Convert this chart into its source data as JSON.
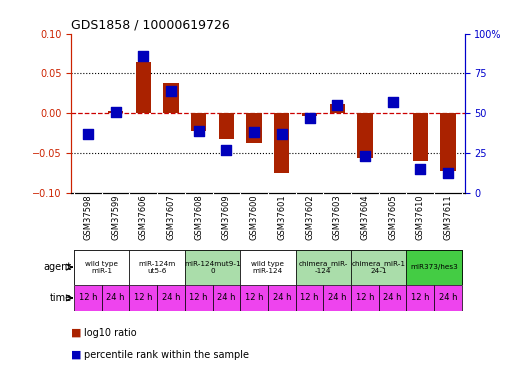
{
  "title": "GDS1858 / 10000619726",
  "samples": [
    "GSM37598",
    "GSM37599",
    "GSM37606",
    "GSM37607",
    "GSM37608",
    "GSM37609",
    "GSM37600",
    "GSM37601",
    "GSM37602",
    "GSM37603",
    "GSM37604",
    "GSM37605",
    "GSM37610",
    "GSM37611"
  ],
  "log10_ratio": [
    0.0,
    0.003,
    0.065,
    0.038,
    -0.022,
    -0.032,
    -0.038,
    -0.075,
    -0.004,
    0.012,
    -0.057,
    0.0,
    -0.06,
    -0.073
  ],
  "percentile_rank": [
    37,
    51,
    86,
    64,
    39,
    27,
    38,
    37,
    47,
    55,
    23,
    57,
    15,
    12
  ],
  "ylim": [
    -0.1,
    0.1
  ],
  "y2lim": [
    0,
    100
  ],
  "yticks": [
    -0.1,
    -0.05,
    0.0,
    0.05,
    0.1
  ],
  "y2ticks": [
    0,
    25,
    50,
    75,
    100
  ],
  "bar_color": "#aa2200",
  "dot_color": "#0000bb",
  "agent_groups": [
    {
      "label": "wild type\nmiR-1",
      "cols": [
        0,
        1
      ],
      "color": "#ffffff"
    },
    {
      "label": "miR-124m\nut5-6",
      "cols": [
        2,
        3
      ],
      "color": "#ffffff"
    },
    {
      "label": "miR-124mut9-1\n0",
      "cols": [
        4,
        5
      ],
      "color": "#aaddaa"
    },
    {
      "label": "wild type\nmiR-124",
      "cols": [
        6,
        7
      ],
      "color": "#ffffff"
    },
    {
      "label": "chimera_miR-\n-124",
      "cols": [
        8,
        9
      ],
      "color": "#aaddaa"
    },
    {
      "label": "chimera_miR-1\n24-1",
      "cols": [
        10,
        11
      ],
      "color": "#aaddaa"
    },
    {
      "label": "miR373/hes3",
      "cols": [
        12,
        13
      ],
      "color": "#44cc44"
    }
  ],
  "time_labels": [
    "12 h",
    "24 h",
    "12 h",
    "24 h",
    "12 h",
    "24 h",
    "12 h",
    "24 h",
    "12 h",
    "24 h",
    "12 h",
    "24 h",
    "12 h",
    "24 h"
  ],
  "time_color": "#ee44ee",
  "bg_color": "#ffffff",
  "legend_items": [
    {
      "color": "#aa2200",
      "label": "log10 ratio"
    },
    {
      "color": "#0000bb",
      "label": "percentile rank within the sample"
    }
  ]
}
